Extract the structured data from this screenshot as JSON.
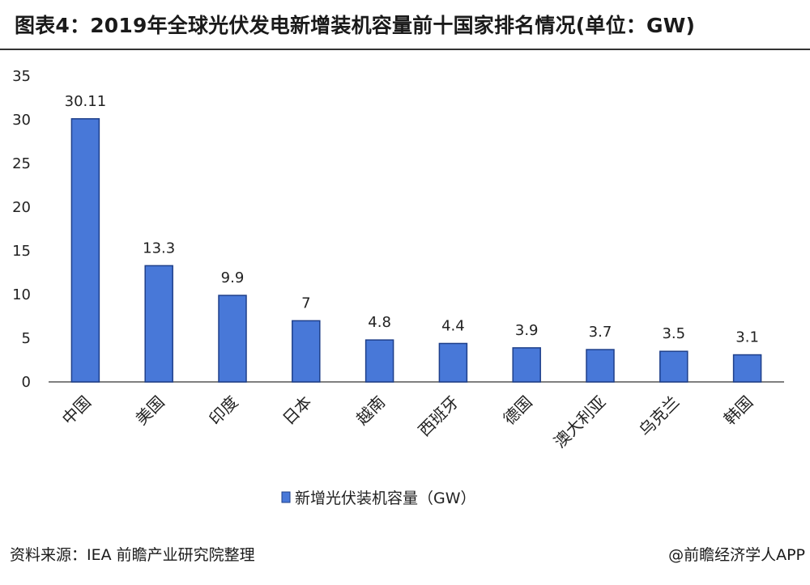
{
  "title": "图表4：2019年全球光伏发电新增装机容量前十国家排名情况(单位：GW)",
  "source_text": "资料来源：IEA 前瞻产业研究院整理",
  "credit_text": "@前瞻经济学人APP",
  "colors": {
    "bar": "#4878d8",
    "bar_border": "#1e3f8a",
    "axis": "#555555",
    "text": "#222222"
  },
  "chart_data": {
    "type": "bar",
    "categories": [
      "中国",
      "美国",
      "印度",
      "日本",
      "越南",
      "西班牙",
      "德国",
      "澳大利亚",
      "乌克兰",
      "韩国"
    ],
    "series": [
      {
        "name": "新增光伏装机容量（GW）",
        "values": [
          30.11,
          13.3,
          9.9,
          7,
          4.8,
          4.4,
          3.9,
          3.7,
          3.5,
          3.1
        ],
        "labels": [
          "30.11",
          "13.3",
          "9.9",
          "7",
          "4.8",
          "4.4",
          "3.9",
          "3.7",
          "3.5",
          "3.1"
        ]
      }
    ],
    "yticks": [
      0,
      5,
      10,
      15,
      20,
      25,
      30,
      35
    ],
    "ylim": [
      0,
      35
    ],
    "grid": false,
    "legend_position": "bottom-center"
  }
}
